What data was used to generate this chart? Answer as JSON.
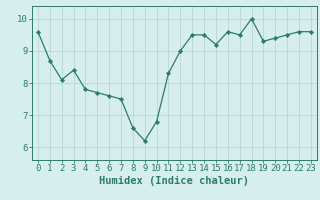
{
  "x": [
    0,
    1,
    2,
    3,
    4,
    5,
    6,
    7,
    8,
    9,
    10,
    11,
    12,
    13,
    14,
    15,
    16,
    17,
    18,
    19,
    20,
    21,
    22,
    23
  ],
  "y": [
    9.6,
    8.7,
    8.1,
    8.4,
    7.8,
    7.7,
    7.6,
    7.5,
    6.6,
    6.2,
    6.8,
    8.3,
    9.0,
    9.5,
    9.5,
    9.2,
    9.6,
    9.5,
    10.0,
    9.3,
    9.4,
    9.5,
    9.6,
    9.6
  ],
  "line_color": "#2d7b6e",
  "marker_color": "#2d7b6e",
  "bg_color": "#d6efed",
  "grid_color": "#b8d8d5",
  "axis_color": "#2d7b6e",
  "tick_color": "#2d7b6e",
  "xlabel": "Humidex (Indice chaleur)",
  "ylim": [
    5.6,
    10.4
  ],
  "xlim": [
    -0.5,
    23.5
  ],
  "yticks": [
    6,
    7,
    8,
    9,
    10
  ],
  "xticks": [
    0,
    1,
    2,
    3,
    4,
    5,
    6,
    7,
    8,
    9,
    10,
    11,
    12,
    13,
    14,
    15,
    16,
    17,
    18,
    19,
    20,
    21,
    22,
    23
  ],
  "xlabel_fontsize": 7.5,
  "tick_fontsize": 6.5,
  "line_width": 0.9,
  "marker_size": 2.2
}
